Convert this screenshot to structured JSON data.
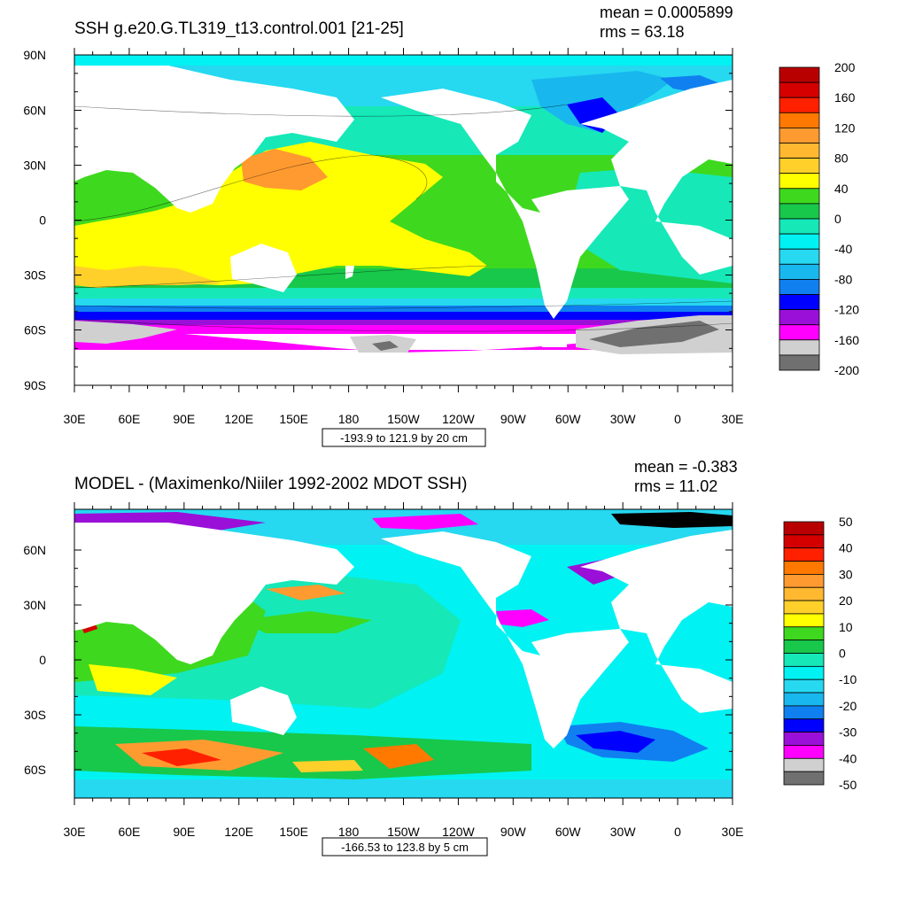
{
  "panels": [
    {
      "title": "SSH g.e20.G.TL319_t13.control.001 [21-25]",
      "mean": "mean = 0.0005899",
      "rms": "rms = 63.18",
      "range_note": "-193.9 to 121.9 by 20 cm",
      "lat_labels": [
        "90N",
        "60N",
        "30N",
        "0",
        "30S",
        "60S",
        "90S"
      ],
      "lon_labels": [
        "30E",
        "60E",
        "90E",
        "120E",
        "150E",
        "180",
        "150W",
        "120W",
        "90W",
        "60W",
        "30W",
        "0",
        "30E"
      ],
      "colorbar_labels": [
        "200",
        "160",
        "120",
        "80",
        "40",
        "0",
        "-40",
        "-80",
        "-120",
        "-160",
        "-200"
      ],
      "colorbar_colors": [
        "#b80000",
        "#d40000",
        "#ff2000",
        "#ff7800",
        "#ff9a30",
        "#ffb830",
        "#ffd02a",
        "#ffff00",
        "#3ed91e",
        "#18c84a",
        "#16e8b8",
        "#00f2f2",
        "#26d8f0",
        "#18b8ee",
        "#1080f0",
        "#0000ff",
        "#9a10d8",
        "#ff00ff",
        "#d0d0d0",
        "#707070"
      ]
    },
    {
      "title": "MODEL - (Maximenko/Niiler 1992-2002 MDOT SSH)",
      "mean": "mean = -0.383",
      "rms": "rms = 11.02",
      "range_note": "-166.53 to 123.8 by 5 cm",
      "lat_labels": [
        "60N",
        "30N",
        "0",
        "30S",
        "60S"
      ],
      "lon_labels": [
        "30E",
        "60E",
        "90E",
        "120E",
        "150E",
        "180",
        "150W",
        "120W",
        "90W",
        "60W",
        "30W",
        "0",
        "30E"
      ],
      "colorbar_labels": [
        "50",
        "40",
        "30",
        "20",
        "10",
        "0",
        "-10",
        "-20",
        "-30",
        "-40",
        "-50"
      ],
      "colorbar_colors": [
        "#b80000",
        "#d40000",
        "#ff2000",
        "#ff7800",
        "#ff9a30",
        "#ffb830",
        "#ffd02a",
        "#ffff00",
        "#3ed91e",
        "#18c84a",
        "#16e8b8",
        "#00f2f2",
        "#26d8f0",
        "#18b8ee",
        "#1080f0",
        "#0000ff",
        "#9a10d8",
        "#ff00ff",
        "#d0d0d0",
        "#707070"
      ]
    }
  ]
}
